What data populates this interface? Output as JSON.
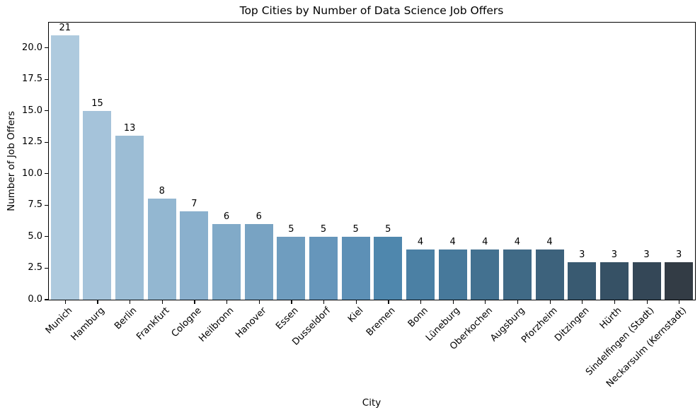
{
  "chart_data": {
    "type": "bar",
    "title": "Top Cities by Number of Data Science Job Offers",
    "xlabel": "City",
    "ylabel": "Number of Job Offers",
    "categories": [
      "Munich",
      "Hamburg",
      "Berlin",
      "Frankfurt",
      "Cologne",
      "Heilbronn",
      "Hanover",
      "Essen",
      "Dusseldorf",
      "Kiel",
      "Bremen",
      "Bonn",
      "Lüneburg",
      "Oberkochen",
      "Augsburg",
      "Pforzheim",
      "Ditzingen",
      "Hürth",
      "Sindelfingen (Stadt)",
      "Neckarsulm (Kernstadt)"
    ],
    "values": [
      21,
      15,
      13,
      8,
      7,
      6,
      6,
      5,
      5,
      5,
      5,
      4,
      4,
      4,
      4,
      4,
      3,
      3,
      3,
      3
    ],
    "bar_colors": [
      "#aecade",
      "#a5c3da",
      "#9cbdd5",
      "#93b7d1",
      "#8ab0cd",
      "#81aac8",
      "#78a3c3",
      "#6f9dbf",
      "#6696bb",
      "#5d90b6",
      "#4f87ad",
      "#4b80a4",
      "#47799b",
      "#437190",
      "#406a86",
      "#3d627c",
      "#395a71",
      "#365165",
      "#344757",
      "#333c45"
    ],
    "value_labels": [
      "21",
      "15",
      "13",
      "8",
      "7",
      "6",
      "6",
      "5",
      "5",
      "5",
      "5",
      "4",
      "4",
      "4",
      "4",
      "4",
      "3",
      "3",
      "3",
      "3"
    ],
    "yticks": [
      0.0,
      2.5,
      5.0,
      7.5,
      10.0,
      12.5,
      15.0,
      17.5,
      20.0
    ],
    "ylim": [
      0,
      22
    ],
    "grid": false,
    "legend": null,
    "value_label_color": "#000000",
    "axis_color": "#000000",
    "background_color": "#ffffff"
  }
}
